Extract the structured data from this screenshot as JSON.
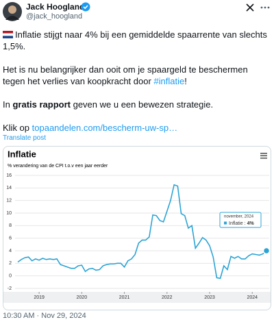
{
  "tweet": {
    "name": "Jack Hoogland",
    "handle": "@jack_hoogland",
    "paragraphs": [
      [
        {
          "text": "Inflatie stijgt naar 4% bij een gemiddelde spaarrente van slechts 1,5%."
        }
      ],
      [
        {
          "text": "Het is nu belangrijker dan ooit om je spaargeld te beschermen tegen het verlies van koopkracht door "
        },
        {
          "text": "#inflatie",
          "link": true
        },
        {
          "text": "!"
        }
      ],
      [
        {
          "text": "In "
        },
        {
          "text": "gratis rapport",
          "bold": true
        },
        {
          "text": " geven we u een bewezen strategie."
        }
      ],
      [
        {
          "text": "Klik op "
        },
        {
          "text": "topaandelen.com/bescherm-uw-sp…",
          "link": true
        }
      ]
    ],
    "translate": "Translate post",
    "timestamp": "10:30 AM · Nov 29, 2024"
  },
  "chart_data": {
    "type": "line",
    "title": "Inflatie",
    "subtitle": "% verandering van de CPI t.o.v een jaar eerder",
    "x": [
      "2019-01",
      "2019-02",
      "2019-03",
      "2019-04",
      "2019-05",
      "2019-06",
      "2019-07",
      "2019-08",
      "2019-09",
      "2019-10",
      "2019-11",
      "2019-12",
      "2020-01",
      "2020-02",
      "2020-03",
      "2020-04",
      "2020-05",
      "2020-06",
      "2020-07",
      "2020-08",
      "2020-09",
      "2020-10",
      "2020-11",
      "2020-12",
      "2021-01",
      "2021-02",
      "2021-03",
      "2021-04",
      "2021-05",
      "2021-06",
      "2021-07",
      "2021-08",
      "2021-09",
      "2021-10",
      "2021-11",
      "2021-12",
      "2022-01",
      "2022-02",
      "2022-03",
      "2022-04",
      "2022-05",
      "2022-06",
      "2022-07",
      "2022-08",
      "2022-09",
      "2022-10",
      "2022-11",
      "2022-12",
      "2023-01",
      "2023-02",
      "2023-03",
      "2023-04",
      "2023-05",
      "2023-06",
      "2023-07",
      "2023-08",
      "2023-09",
      "2023-10",
      "2023-11",
      "2023-12",
      "2024-01",
      "2024-02",
      "2024-03",
      "2024-04",
      "2024-05",
      "2024-06",
      "2024-07",
      "2024-08",
      "2024-09",
      "2024-10",
      "2024-11"
    ],
    "series": [
      {
        "name": "Inflatie",
        "color": "#2ba3d4",
        "values": [
          2.2,
          2.6,
          2.9,
          3.0,
          2.4,
          2.7,
          2.5,
          2.8,
          2.6,
          2.7,
          2.6,
          2.7,
          1.8,
          1.6,
          1.4,
          1.2,
          1.2,
          1.6,
          1.7,
          0.7,
          1.1,
          1.2,
          0.9,
          1.0,
          1.6,
          1.8,
          1.9,
          1.9,
          2.0,
          2.0,
          1.4,
          2.4,
          2.7,
          3.4,
          5.2,
          5.7,
          5.7,
          6.2,
          9.7,
          9.6,
          8.8,
          8.6,
          10.3,
          12.0,
          14.5,
          14.3,
          9.9,
          9.6,
          7.6,
          8.0,
          4.4,
          5.2,
          6.1,
          5.7,
          4.8,
          3.0,
          -0.3,
          -0.4,
          1.6,
          1.0,
          3.1,
          2.8,
          3.1,
          2.7,
          2.7,
          3.2,
          3.5,
          3.4,
          3.3,
          3.5,
          4
        ]
      }
    ],
    "xlim": [
      "2019-01",
      "2024-11"
    ],
    "xticks": [
      {
        "value": "2019-07",
        "label": "2019"
      },
      {
        "value": "2020-07",
        "label": "2020"
      },
      {
        "value": "2021-07",
        "label": "2021"
      },
      {
        "value": "2022-07",
        "label": "2022"
      },
      {
        "value": "2023-07",
        "label": "2023"
      },
      {
        "value": "2024-07",
        "label": "2024"
      }
    ],
    "ylim": [
      -2,
      16
    ],
    "yticks": [
      -2,
      0,
      2,
      4,
      6,
      8,
      10,
      12,
      14,
      16
    ],
    "grid": true,
    "tooltip": {
      "title": "november, 2024",
      "separator": ":",
      "value_label": "4%"
    }
  }
}
